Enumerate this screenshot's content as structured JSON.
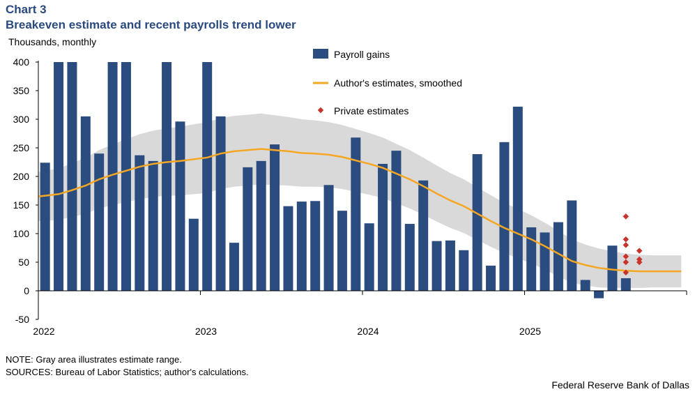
{
  "header": {
    "chart_label": "Chart 3",
    "title": "Breakeven estimate and recent payrolls trend lower",
    "units": "Thousands,  monthly"
  },
  "footer": {
    "note": "NOTE: Gray area illustrates estimate range.",
    "sources": "SOURCES: Bureau of Labor Statistics; author's calculations.",
    "credit": "Federal Reserve Bank of Dallas"
  },
  "colors": {
    "bars": "#2b4c7e",
    "line": "#f5a623",
    "band": "#d9d9d9",
    "dots": "#c8342b"
  },
  "chart_data": {
    "type": "bar",
    "title": "Breakeven estimate and recent payrolls trend lower",
    "ylabel": "Thousands,  monthly",
    "ylim": [
      -50,
      400
    ],
    "yticks": [
      -50,
      0,
      50,
      100,
      150,
      200,
      250,
      300,
      350,
      400
    ],
    "xticks": [
      "2022",
      "2023",
      "2024",
      "2025"
    ],
    "xrange": [
      "2022-01",
      "2025-12"
    ],
    "grid": false,
    "legend": "top-center",
    "legend_entries": [
      "Payroll gains",
      "Author's estimates, smoothed",
      "Private estimates"
    ],
    "months": [
      "2022-01",
      "2022-02",
      "2022-03",
      "2022-04",
      "2022-05",
      "2022-06",
      "2022-07",
      "2022-08",
      "2022-09",
      "2022-10",
      "2022-11",
      "2022-12",
      "2023-01",
      "2023-02",
      "2023-03",
      "2023-04",
      "2023-05",
      "2023-06",
      "2023-07",
      "2023-08",
      "2023-09",
      "2023-10",
      "2023-11",
      "2023-12",
      "2024-01",
      "2024-02",
      "2024-03",
      "2024-04",
      "2024-05",
      "2024-06",
      "2024-07",
      "2024-08",
      "2024-09",
      "2024-10",
      "2024-11",
      "2024-12",
      "2025-01",
      "2025-02",
      "2025-03",
      "2025-04",
      "2025-05",
      "2025-06",
      "2025-07",
      "2025-08",
      "2025-09",
      "2025-10",
      "2025-11",
      "2025-12"
    ],
    "series": [
      {
        "name": "Payroll gains",
        "type": "bar",
        "values": [
          224,
          400,
          400,
          305,
          240,
          400,
          400,
          237,
          227,
          400,
          296,
          126,
          400,
          305,
          84,
          216,
          227,
          256,
          148,
          156,
          157,
          185,
          140,
          268,
          118,
          222,
          245,
          117,
          193,
          87,
          88,
          71,
          239,
          44,
          260,
          322,
          111,
          102,
          120,
          158,
          19,
          -13,
          79,
          22
        ]
      },
      {
        "name": "Author's estimates, smoothed",
        "type": "line",
        "values": [
          165,
          169,
          176,
          184,
          195,
          203,
          210,
          217,
          222,
          225,
          227,
          230,
          233,
          240,
          244,
          246,
          248,
          246,
          244,
          241,
          240,
          238,
          234,
          228,
          222,
          215,
          205,
          195,
          183,
          170,
          158,
          148,
          135,
          122,
          110,
          100,
          90,
          78,
          65,
          52,
          45,
          40,
          37,
          35,
          34,
          34,
          34,
          34
        ]
      },
      {
        "name": "Private estimates",
        "type": "scatter",
        "points": [
          [
            "2025-08",
            130
          ],
          [
            "2025-08",
            90
          ],
          [
            "2025-08",
            80
          ],
          [
            "2025-08",
            60
          ],
          [
            "2025-08",
            50
          ],
          [
            "2025-08",
            32
          ],
          [
            "2025-09",
            70
          ],
          [
            "2025-09",
            55
          ],
          [
            "2025-09",
            50
          ]
        ]
      }
    ],
    "band": {
      "upper": [
        208,
        214,
        223,
        233,
        246,
        256,
        265,
        274,
        280,
        284,
        287,
        291,
        295,
        302,
        306,
        308,
        310,
        307,
        304,
        300,
        298,
        295,
        290,
        283,
        276,
        268,
        257,
        246,
        233,
        219,
        206,
        195,
        181,
        167,
        154,
        143,
        132,
        119,
        105,
        90,
        81,
        74,
        69,
        65,
        63,
        62,
        62,
        62
      ],
      "lower": [
        122,
        124,
        129,
        135,
        144,
        150,
        155,
        160,
        164,
        166,
        167,
        169,
        171,
        178,
        182,
        184,
        186,
        185,
        184,
        182,
        182,
        181,
        178,
        173,
        168,
        162,
        153,
        144,
        133,
        121,
        110,
        101,
        89,
        77,
        66,
        57,
        48,
        37,
        25,
        14,
        9,
        6,
        5,
        5,
        5,
        6,
        6,
        6
      ]
    }
  }
}
